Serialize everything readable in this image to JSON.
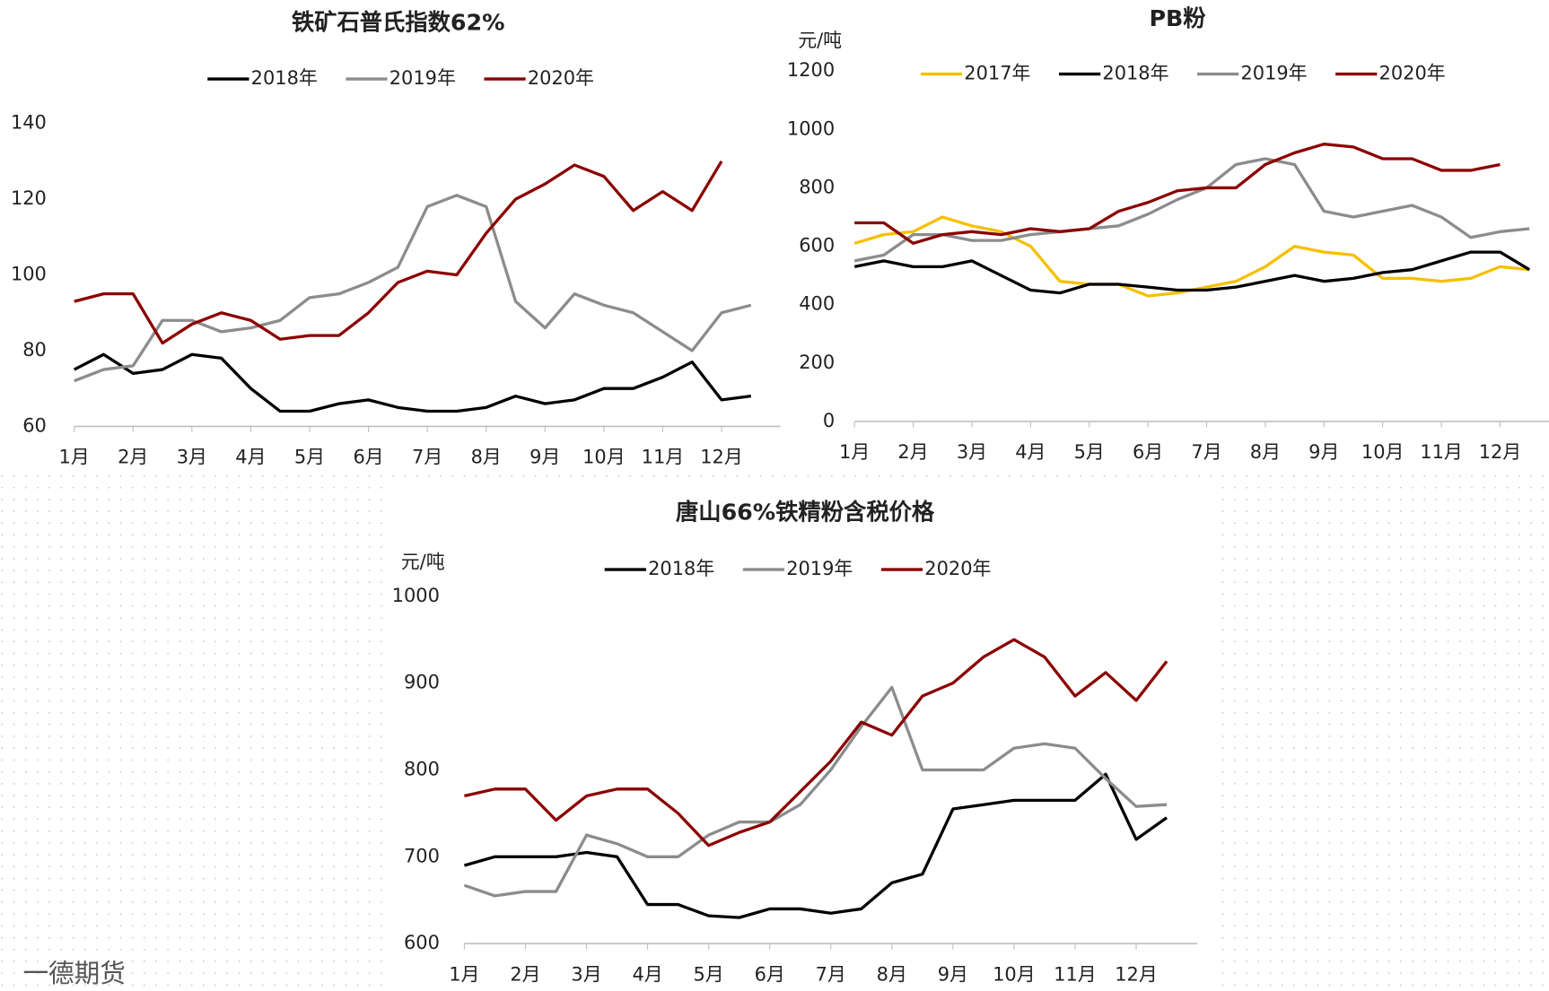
{
  "watermark": "一德期货",
  "chart_data": [
    {
      "type": "line",
      "title": "铁矿石普氏指数62%",
      "categories": [
        "1月",
        null,
        "2月",
        null,
        "3月",
        null,
        "4月",
        null,
        "5月",
        null,
        "6月",
        null,
        "7月",
        null,
        "8月",
        null,
        "9月",
        null,
        "10月",
        null,
        "11月",
        null,
        "12月",
        null
      ],
      "series": [
        {
          "name": "2018年",
          "color": "#000000",
          "values": [
            75,
            79,
            74,
            75,
            79,
            78,
            70,
            64,
            64,
            66,
            67,
            65,
            64,
            64,
            65,
            68,
            66,
            67,
            70,
            70,
            73,
            77,
            67,
            68
          ]
        },
        {
          "name": "2019年",
          "color": "#8c8c8c",
          "values": [
            72,
            75,
            76,
            88,
            88,
            85,
            86,
            88,
            94,
            95,
            98,
            102,
            118,
            121,
            118,
            93,
            86,
            95,
            92,
            90,
            85,
            80,
            90,
            92
          ]
        },
        {
          "name": "2020年",
          "color": "#8b0000",
          "values": [
            93,
            95,
            95,
            82,
            87,
            90,
            88,
            83,
            84,
            84,
            90,
            98,
            101,
            100,
            111,
            120,
            124,
            129,
            126,
            117,
            122,
            117,
            130,
            null
          ]
        }
      ],
      "ylim": [
        60,
        140
      ],
      "yticks": [
        60,
        80,
        100,
        120,
        140
      ],
      "legend": "top"
    },
    {
      "type": "line",
      "title": "PB粉",
      "unit": "元/吨",
      "categories": [
        "1月",
        null,
        "2月",
        null,
        "3月",
        null,
        "4月",
        null,
        "5月",
        null,
        "6月",
        null,
        "7月",
        null,
        "8月",
        null,
        "9月",
        null,
        "10月",
        null,
        "11月",
        null,
        "12月",
        null
      ],
      "series": [
        {
          "name": "2017年",
          "color": "#f5c000",
          "values": [
            610,
            640,
            650,
            700,
            670,
            650,
            600,
            480,
            470,
            470,
            430,
            440,
            460,
            480,
            530,
            600,
            580,
            570,
            490,
            490,
            480,
            490,
            530,
            520
          ]
        },
        {
          "name": "2018年",
          "color": "#000000",
          "values": [
            530,
            550,
            530,
            530,
            550,
            500,
            450,
            440,
            470,
            470,
            460,
            450,
            450,
            460,
            480,
            500,
            480,
            490,
            510,
            520,
            550,
            580,
            580,
            520
          ]
        },
        {
          "name": "2019年",
          "color": "#8c8c8c",
          "values": [
            550,
            570,
            640,
            640,
            620,
            620,
            640,
            650,
            660,
            670,
            710,
            760,
            800,
            880,
            900,
            880,
            720,
            700,
            720,
            740,
            700,
            630,
            650,
            660
          ]
        },
        {
          "name": "2020年",
          "color": "#8b0000",
          "values": [
            680,
            680,
            610,
            640,
            650,
            640,
            660,
            650,
            660,
            720,
            750,
            790,
            800,
            800,
            880,
            920,
            950,
            940,
            900,
            900,
            860,
            860,
            880,
            null
          ]
        }
      ],
      "ylim": [
        0,
        1200
      ],
      "yticks": [
        0,
        200,
        400,
        600,
        800,
        1000,
        1200
      ],
      "legend": "top"
    },
    {
      "type": "line",
      "title": "唐山66%铁精粉含税价格",
      "unit": "元/吨",
      "categories": [
        "1月",
        null,
        "2月",
        null,
        "3月",
        null,
        "4月",
        null,
        "5月",
        null,
        "6月",
        null,
        "7月",
        null,
        "8月",
        null,
        "9月",
        null,
        "10月",
        null,
        "11月",
        null,
        "12月",
        null
      ],
      "series": [
        {
          "name": "2018年",
          "color": "#000000",
          "values": [
            690,
            700,
            700,
            700,
            705,
            700,
            645,
            645,
            632,
            630,
            640,
            640,
            635,
            640,
            670,
            680,
            755,
            760,
            765,
            765,
            765,
            795,
            720,
            745
          ]
        },
        {
          "name": "2019年",
          "color": "#8c8c8c",
          "values": [
            667,
            655,
            660,
            660,
            725,
            715,
            700,
            700,
            725,
            740,
            740,
            760,
            800,
            850,
            895,
            800,
            800,
            800,
            825,
            830,
            825,
            790,
            758,
            760
          ]
        },
        {
          "name": "2020年",
          "color": "#8b0000",
          "values": [
            770,
            778,
            778,
            742,
            770,
            778,
            778,
            750,
            713,
            728,
            740,
            775,
            810,
            855,
            840,
            885,
            900,
            930,
            950,
            930,
            885,
            912,
            880,
            925
          ]
        }
      ],
      "ylim": [
        600,
        1000
      ],
      "yticks": [
        600,
        700,
        800,
        900,
        1000
      ],
      "legend": "top"
    }
  ]
}
